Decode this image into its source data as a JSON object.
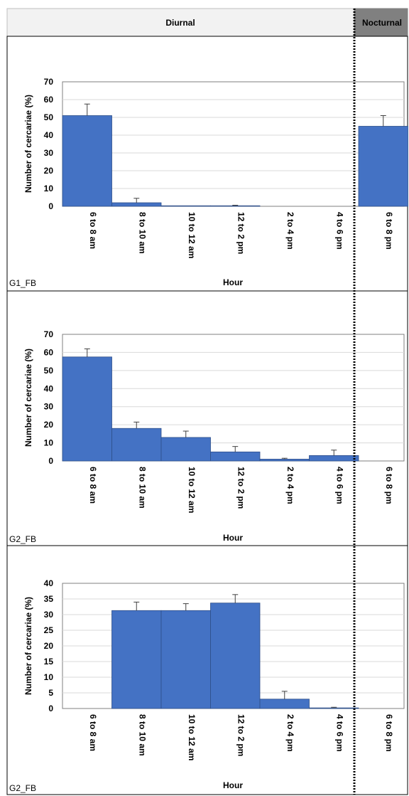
{
  "header": {
    "diurnal_label": "Diurnal",
    "nocturnal_label": "Nocturnal",
    "diurnal_fill": "#f2f2f2",
    "nocturnal_fill": "#808080"
  },
  "colors": {
    "bar": "#4472c4",
    "bar_edge": "#2f4f8a",
    "grid": "#d9d9d9",
    "divider": "#000000"
  },
  "chart_data": [
    {
      "type": "bar",
      "panel_label": "G1_FB",
      "categories": [
        "6 to 8 am",
        "8 to 10 am",
        "10 to 12 am",
        "12 to 2 pm",
        "2 to 4 pm",
        "4 to 6 pm",
        "6 to 8 pm"
      ],
      "values": [
        51,
        2,
        0.3,
        0.3,
        0,
        0,
        45
      ],
      "errors": [
        6.5,
        2.5,
        0,
        0.3,
        0,
        0,
        6
      ],
      "ylabel": "Number of cercariae (%)",
      "xlabel": "Hour",
      "ylim": [
        0,
        70
      ],
      "yticks": [
        0,
        10,
        20,
        30,
        40,
        50,
        60,
        70
      ],
      "grid": true
    },
    {
      "type": "bar",
      "panel_label": "G2_FB",
      "categories": [
        "6 to 8 am",
        "8 to 10 am",
        "10 to 12 am",
        "12 to 2 pm",
        "2 to 4 pm",
        "4 to 6 pm",
        "6 to 8 pm"
      ],
      "values": [
        57.5,
        18,
        13,
        5,
        1,
        3,
        0
      ],
      "errors": [
        4.5,
        3.5,
        3.5,
        3,
        0.5,
        3,
        0
      ],
      "ylabel": "Number of cercariae (%)",
      "xlabel": "Hour",
      "ylim": [
        0,
        70
      ],
      "yticks": [
        0,
        10,
        20,
        30,
        40,
        50,
        60,
        70
      ],
      "grid": true
    },
    {
      "type": "bar",
      "panel_label": "G2_FB",
      "categories": [
        "6 to 8 am",
        "8 to 10 am",
        "10 to 12 am",
        "12 to 2 pm",
        "2 to 4 pm",
        "4 to 6 pm",
        "6 to 8 pm"
      ],
      "values": [
        0,
        31.3,
        31.3,
        33.7,
        3,
        0.2,
        0
      ],
      "errors": [
        0,
        2.7,
        2.2,
        2.7,
        2.5,
        0.2,
        0
      ],
      "ylabel": "Number of cercariae (%)",
      "xlabel": "Hour",
      "ylim": [
        0,
        40
      ],
      "yticks": [
        0,
        5,
        10,
        15,
        20,
        25,
        30,
        35,
        40
      ],
      "grid": true
    }
  ]
}
